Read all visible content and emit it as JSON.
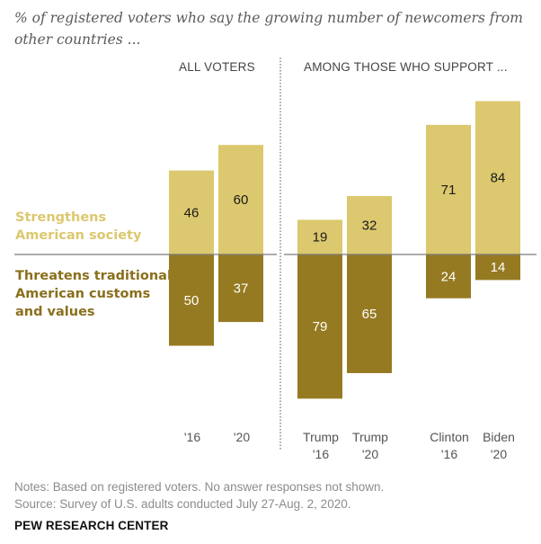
{
  "subtitle": "% of registered voters who say the growing number of newcomers from other countries ...",
  "group_headers": {
    "all_voters": "ALL VOTERS",
    "supporters": "AMONG THOSE WHO SUPPORT ..."
  },
  "legend": {
    "strengthens": {
      "line1": "Strengthens",
      "line2": "American society"
    },
    "threatens": {
      "line1": "Threatens traditional",
      "line2": "American customs",
      "line3": "and values"
    }
  },
  "notes": {
    "line1": "Notes: Based on registered voters. No answer responses not shown.",
    "line2": "Source: Survey of U.S. adults conducted July 27-Aug. 2, 2020."
  },
  "brand": "PEW RESEARCH CENTER",
  "colors": {
    "strengthens": "#dcc86e",
    "threatens": "#967a22",
    "strengthens_label": "#dcc86e",
    "threatens_label": "#8a6f1c"
  },
  "chart_data": {
    "type": "bar",
    "orientation": "diverging-vertical",
    "title": "% of registered voters who say the growing number of newcomers from other countries ...",
    "xlabel": "",
    "ylabel": "",
    "groups": [
      {
        "name": "ALL VOTERS",
        "categories": [
          "'16",
          "'20"
        ]
      },
      {
        "name": "AMONG THOSE WHO SUPPORT ...",
        "categories": [
          "Trump '16",
          "Trump '20",
          "Clinton '16",
          "Biden '20"
        ]
      }
    ],
    "categories": [
      {
        "line1": "'16",
        "line2": ""
      },
      {
        "line1": "'20",
        "line2": ""
      },
      {
        "line1": "Trump",
        "line2": "'16"
      },
      {
        "line1": "Trump",
        "line2": "'20"
      },
      {
        "line1": "Clinton",
        "line2": "'16"
      },
      {
        "line1": "Biden",
        "line2": "'20"
      }
    ],
    "series": [
      {
        "name": "Strengthens American society",
        "direction": "up",
        "values": [
          46,
          60,
          19,
          32,
          71,
          84
        ]
      },
      {
        "name": "Threatens traditional American customs and values",
        "direction": "down",
        "values": [
          50,
          37,
          79,
          65,
          24,
          14
        ]
      }
    ],
    "ylim": [
      -80,
      85
    ],
    "grid": false,
    "legend": "left"
  }
}
